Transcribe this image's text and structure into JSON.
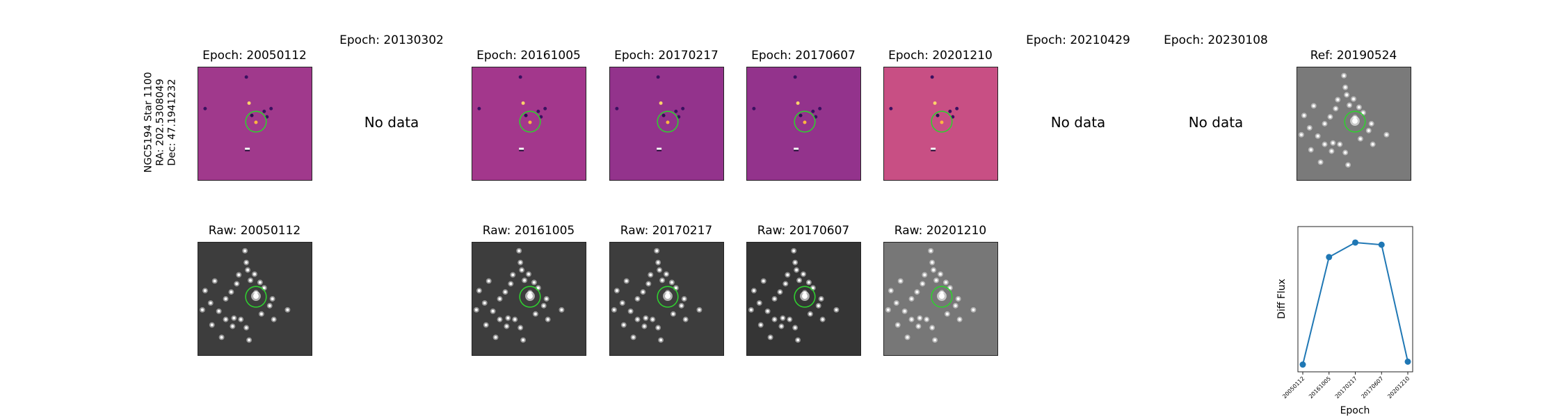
{
  "star_label": {
    "line1": "NGC5194 Star 1100",
    "line2": "RA: 202.5308049",
    "line3": "Dec: 47.1941232"
  },
  "no_data_text": "No data",
  "diff_row": [
    {
      "title": "Epoch: 20050112",
      "has_data": true,
      "style": "diff1"
    },
    {
      "title": "Epoch: 20130302",
      "has_data": false
    },
    {
      "title": "Epoch: 20161005",
      "has_data": true,
      "style": "diff2"
    },
    {
      "title": "Epoch: 20170217",
      "has_data": true,
      "style": "diff3"
    },
    {
      "title": "Epoch: 20170607",
      "has_data": true,
      "style": "diff3"
    },
    {
      "title": "Epoch: 20201210",
      "has_data": true,
      "style": "diff4"
    },
    {
      "title": "Epoch: 20210429",
      "has_data": false
    },
    {
      "title": "Epoch: 20230108",
      "has_data": false
    },
    {
      "title": "Ref: 20190524",
      "has_data": true,
      "style": "ref"
    }
  ],
  "raw_row": [
    {
      "title": "Raw: 20050112",
      "style": "raw"
    },
    {
      "title": "Raw: 20161005",
      "style": "raw"
    },
    {
      "title": "Raw: 20170217",
      "style": "raw"
    },
    {
      "title": "Raw: 20170607",
      "style": "raw2"
    },
    {
      "title": "Raw: 20201210",
      "style": "raw3"
    }
  ],
  "colors": {
    "diff1": "#a0398c",
    "diff2": "#a3378c",
    "diff3": "#93338c",
    "diff4": "#c84f84",
    "ref": "#7a7a7a",
    "raw": "#3d3d3d",
    "raw2": "#353535",
    "raw3": "#777777",
    "circle": "#2fd02f",
    "series": "#1f77b4"
  },
  "chart_data": {
    "type": "line",
    "categories": [
      "20050112",
      "20161005",
      "20170217",
      "20170607",
      "20201210"
    ],
    "series": [
      {
        "values": [
          0.05,
          0.79,
          0.89,
          0.875,
          0.07
        ]
      }
    ],
    "xlabel": "Epoch",
    "ylabel": "Diff Flux",
    "ylim": [
      0,
      1
    ]
  }
}
